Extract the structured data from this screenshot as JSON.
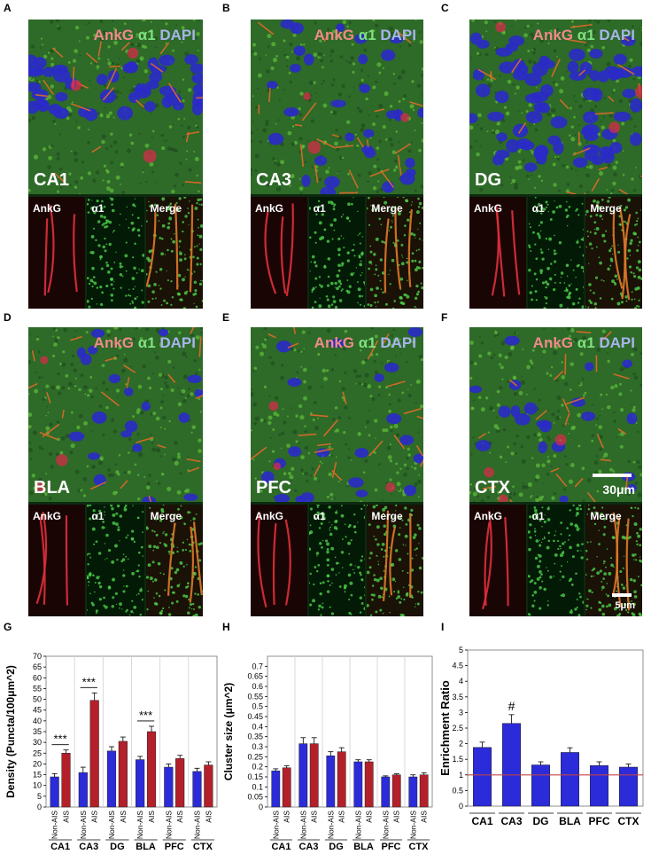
{
  "panels": [
    {
      "letter": "A",
      "region": "CA1",
      "kind": "layer"
    },
    {
      "letter": "B",
      "region": "CA3",
      "kind": "sparse"
    },
    {
      "letter": "C",
      "region": "DG",
      "kind": "dense"
    },
    {
      "letter": "D",
      "region": "BLA",
      "kind": "diffuse"
    },
    {
      "letter": "E",
      "region": "PFC",
      "kind": "diffuse"
    },
    {
      "letter": "F",
      "region": "CTX",
      "kind": "diffuse"
    }
  ],
  "stain": {
    "ankg": "AnkG",
    "a1": "α1",
    "dapi": "DAPI"
  },
  "subpanels": {
    "ankg": "AnkG",
    "a1": "α1",
    "merge": "Merge"
  },
  "scalebars": {
    "main": "30μm",
    "inset": "5μm"
  },
  "colors": {
    "nonais": "#2b2bd9",
    "ais": "#b3202a",
    "refline": "#c0464b"
  },
  "chart_data": [
    {
      "letter": "G",
      "type": "bar",
      "ylabel": "Density (Puncta/100μm^2)",
      "ylim": [
        0,
        70
      ],
      "yticks": [
        0,
        5,
        10,
        15,
        20,
        25,
        30,
        35,
        40,
        45,
        50,
        55,
        60,
        65,
        70
      ],
      "bar_labels": [
        "Non-AIS",
        "AIS"
      ],
      "groups": [
        "CA1",
        "CA3",
        "DG",
        "BLA",
        "PFC",
        "CTX"
      ],
      "series": [
        {
          "name": "Non-AIS",
          "values": [
            14,
            16,
            26,
            22,
            18.5,
            16.5
          ],
          "errors": [
            1.5,
            2.5,
            2,
            1.5,
            1.5,
            1.5
          ]
        },
        {
          "name": "AIS",
          "values": [
            25,
            49.5,
            30.5,
            35,
            22.5,
            19.5
          ],
          "errors": [
            1.5,
            3.5,
            2,
            2.5,
            1.5,
            1.5
          ]
        }
      ],
      "significance": [
        {
          "group": "CA1",
          "label": "***"
        },
        {
          "group": "CA3",
          "label": "***"
        },
        {
          "group": "BLA",
          "label": "***"
        }
      ]
    },
    {
      "letter": "H",
      "type": "bar",
      "ylabel": "Cluster size (μm^2)",
      "ylim": [
        0,
        0.75
      ],
      "yticks": [
        0,
        0.05,
        0.1,
        0.15,
        0.2,
        0.25,
        0.3,
        0.35,
        0.4,
        0.45,
        0.5,
        0.55,
        0.6,
        0.65,
        0.7
      ],
      "ytick_labels": [
        "0",
        "0.05",
        "0.1",
        "0.15",
        "0.2",
        "0.25",
        "0.3",
        "0.35",
        "0.4",
        "0.45",
        "0.5",
        "0.55",
        "0.6",
        "0.65",
        "0.7"
      ],
      "bar_labels": [
        "Non-AIS",
        "AIS"
      ],
      "groups": [
        "CA1",
        "CA3",
        "DG",
        "BLA",
        "PFC",
        "CTX"
      ],
      "series": [
        {
          "name": "Non-AIS",
          "values": [
            0.18,
            0.315,
            0.255,
            0.225,
            0.15,
            0.15
          ],
          "errors": [
            0.01,
            0.03,
            0.02,
            0.01,
            0.005,
            0.01
          ]
        },
        {
          "name": "AIS",
          "values": [
            0.195,
            0.315,
            0.275,
            0.225,
            0.16,
            0.16
          ],
          "errors": [
            0.01,
            0.03,
            0.02,
            0.01,
            0.005,
            0.01
          ]
        }
      ]
    },
    {
      "letter": "I",
      "type": "bar",
      "ylabel": "Enrichment Ratio",
      "ylim": [
        0,
        5
      ],
      "yticks": [
        0,
        0.5,
        1,
        1.5,
        2,
        2.5,
        3,
        3.5,
        4,
        4.5,
        5
      ],
      "ytick_labels": [
        "0",
        "0.5",
        "1",
        "1.5",
        "2",
        "2.5",
        "3",
        "3.5",
        "4",
        "4.5",
        "5"
      ],
      "categories": [
        "CA1",
        "CA3",
        "DG",
        "BLA",
        "PFC",
        "CTX"
      ],
      "values": [
        1.88,
        2.65,
        1.32,
        1.72,
        1.3,
        1.25
      ],
      "errors": [
        0.17,
        0.28,
        0.1,
        0.15,
        0.12,
        0.1
      ],
      "reference_line": 1,
      "annotation": {
        "category": "CA3",
        "label": "#"
      }
    }
  ]
}
